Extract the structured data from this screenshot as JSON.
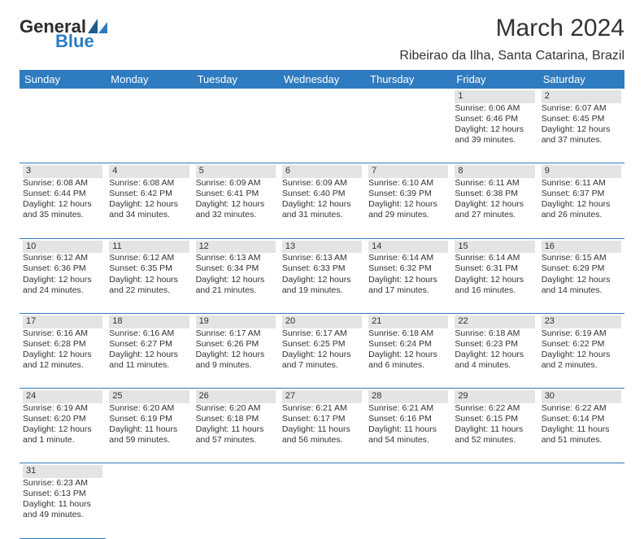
{
  "brand": {
    "name": "General",
    "sub": "Blue",
    "mark_color": "#2f7bbf",
    "text_color": "#2b2b2b"
  },
  "header": {
    "month_title": "March 2024",
    "location": "Ribeirao da Ilha, Santa Catarina, Brazil"
  },
  "colors": {
    "header_bg": "#2f7bbf",
    "header_fg": "#ffffff",
    "daynum_bg": "#e4e4e4",
    "border": "#2f7bbf",
    "background": "#ffffff",
    "text": "#333333"
  },
  "calendar": {
    "type": "calendar-table",
    "columns": [
      "Sunday",
      "Monday",
      "Tuesday",
      "Wednesday",
      "Thursday",
      "Friday",
      "Saturday"
    ],
    "col_width_pct": 14.28,
    "font_size_header": 13,
    "font_size_cell": 10.5,
    "weeks": [
      [
        null,
        null,
        null,
        null,
        null,
        {
          "n": "1",
          "sr": "Sunrise: 6:06 AM",
          "ss": "Sunset: 6:46 PM",
          "d1": "Daylight: 12 hours",
          "d2": "and 39 minutes."
        },
        {
          "n": "2",
          "sr": "Sunrise: 6:07 AM",
          "ss": "Sunset: 6:45 PM",
          "d1": "Daylight: 12 hours",
          "d2": "and 37 minutes."
        }
      ],
      [
        {
          "n": "3",
          "sr": "Sunrise: 6:08 AM",
          "ss": "Sunset: 6:44 PM",
          "d1": "Daylight: 12 hours",
          "d2": "and 35 minutes."
        },
        {
          "n": "4",
          "sr": "Sunrise: 6:08 AM",
          "ss": "Sunset: 6:42 PM",
          "d1": "Daylight: 12 hours",
          "d2": "and 34 minutes."
        },
        {
          "n": "5",
          "sr": "Sunrise: 6:09 AM",
          "ss": "Sunset: 6:41 PM",
          "d1": "Daylight: 12 hours",
          "d2": "and 32 minutes."
        },
        {
          "n": "6",
          "sr": "Sunrise: 6:09 AM",
          "ss": "Sunset: 6:40 PM",
          "d1": "Daylight: 12 hours",
          "d2": "and 31 minutes."
        },
        {
          "n": "7",
          "sr": "Sunrise: 6:10 AM",
          "ss": "Sunset: 6:39 PM",
          "d1": "Daylight: 12 hours",
          "d2": "and 29 minutes."
        },
        {
          "n": "8",
          "sr": "Sunrise: 6:11 AM",
          "ss": "Sunset: 6:38 PM",
          "d1": "Daylight: 12 hours",
          "d2": "and 27 minutes."
        },
        {
          "n": "9",
          "sr": "Sunrise: 6:11 AM",
          "ss": "Sunset: 6:37 PM",
          "d1": "Daylight: 12 hours",
          "d2": "and 26 minutes."
        }
      ],
      [
        {
          "n": "10",
          "sr": "Sunrise: 6:12 AM",
          "ss": "Sunset: 6:36 PM",
          "d1": "Daylight: 12 hours",
          "d2": "and 24 minutes."
        },
        {
          "n": "11",
          "sr": "Sunrise: 6:12 AM",
          "ss": "Sunset: 6:35 PM",
          "d1": "Daylight: 12 hours",
          "d2": "and 22 minutes."
        },
        {
          "n": "12",
          "sr": "Sunrise: 6:13 AM",
          "ss": "Sunset: 6:34 PM",
          "d1": "Daylight: 12 hours",
          "d2": "and 21 minutes."
        },
        {
          "n": "13",
          "sr": "Sunrise: 6:13 AM",
          "ss": "Sunset: 6:33 PM",
          "d1": "Daylight: 12 hours",
          "d2": "and 19 minutes."
        },
        {
          "n": "14",
          "sr": "Sunrise: 6:14 AM",
          "ss": "Sunset: 6:32 PM",
          "d1": "Daylight: 12 hours",
          "d2": "and 17 minutes."
        },
        {
          "n": "15",
          "sr": "Sunrise: 6:14 AM",
          "ss": "Sunset: 6:31 PM",
          "d1": "Daylight: 12 hours",
          "d2": "and 16 minutes."
        },
        {
          "n": "16",
          "sr": "Sunrise: 6:15 AM",
          "ss": "Sunset: 6:29 PM",
          "d1": "Daylight: 12 hours",
          "d2": "and 14 minutes."
        }
      ],
      [
        {
          "n": "17",
          "sr": "Sunrise: 6:16 AM",
          "ss": "Sunset: 6:28 PM",
          "d1": "Daylight: 12 hours",
          "d2": "and 12 minutes."
        },
        {
          "n": "18",
          "sr": "Sunrise: 6:16 AM",
          "ss": "Sunset: 6:27 PM",
          "d1": "Daylight: 12 hours",
          "d2": "and 11 minutes."
        },
        {
          "n": "19",
          "sr": "Sunrise: 6:17 AM",
          "ss": "Sunset: 6:26 PM",
          "d1": "Daylight: 12 hours",
          "d2": "and 9 minutes."
        },
        {
          "n": "20",
          "sr": "Sunrise: 6:17 AM",
          "ss": "Sunset: 6:25 PM",
          "d1": "Daylight: 12 hours",
          "d2": "and 7 minutes."
        },
        {
          "n": "21",
          "sr": "Sunrise: 6:18 AM",
          "ss": "Sunset: 6:24 PM",
          "d1": "Daylight: 12 hours",
          "d2": "and 6 minutes."
        },
        {
          "n": "22",
          "sr": "Sunrise: 6:18 AM",
          "ss": "Sunset: 6:23 PM",
          "d1": "Daylight: 12 hours",
          "d2": "and 4 minutes."
        },
        {
          "n": "23",
          "sr": "Sunrise: 6:19 AM",
          "ss": "Sunset: 6:22 PM",
          "d1": "Daylight: 12 hours",
          "d2": "and 2 minutes."
        }
      ],
      [
        {
          "n": "24",
          "sr": "Sunrise: 6:19 AM",
          "ss": "Sunset: 6:20 PM",
          "d1": "Daylight: 12 hours",
          "d2": "and 1 minute."
        },
        {
          "n": "25",
          "sr": "Sunrise: 6:20 AM",
          "ss": "Sunset: 6:19 PM",
          "d1": "Daylight: 11 hours",
          "d2": "and 59 minutes."
        },
        {
          "n": "26",
          "sr": "Sunrise: 6:20 AM",
          "ss": "Sunset: 6:18 PM",
          "d1": "Daylight: 11 hours",
          "d2": "and 57 minutes."
        },
        {
          "n": "27",
          "sr": "Sunrise: 6:21 AM",
          "ss": "Sunset: 6:17 PM",
          "d1": "Daylight: 11 hours",
          "d2": "and 56 minutes."
        },
        {
          "n": "28",
          "sr": "Sunrise: 6:21 AM",
          "ss": "Sunset: 6:16 PM",
          "d1": "Daylight: 11 hours",
          "d2": "and 54 minutes."
        },
        {
          "n": "29",
          "sr": "Sunrise: 6:22 AM",
          "ss": "Sunset: 6:15 PM",
          "d1": "Daylight: 11 hours",
          "d2": "and 52 minutes."
        },
        {
          "n": "30",
          "sr": "Sunrise: 6:22 AM",
          "ss": "Sunset: 6:14 PM",
          "d1": "Daylight: 11 hours",
          "d2": "and 51 minutes."
        }
      ],
      [
        {
          "n": "31",
          "sr": "Sunrise: 6:23 AM",
          "ss": "Sunset: 6:13 PM",
          "d1": "Daylight: 11 hours",
          "d2": "and 49 minutes."
        },
        null,
        null,
        null,
        null,
        null,
        null
      ]
    ]
  }
}
